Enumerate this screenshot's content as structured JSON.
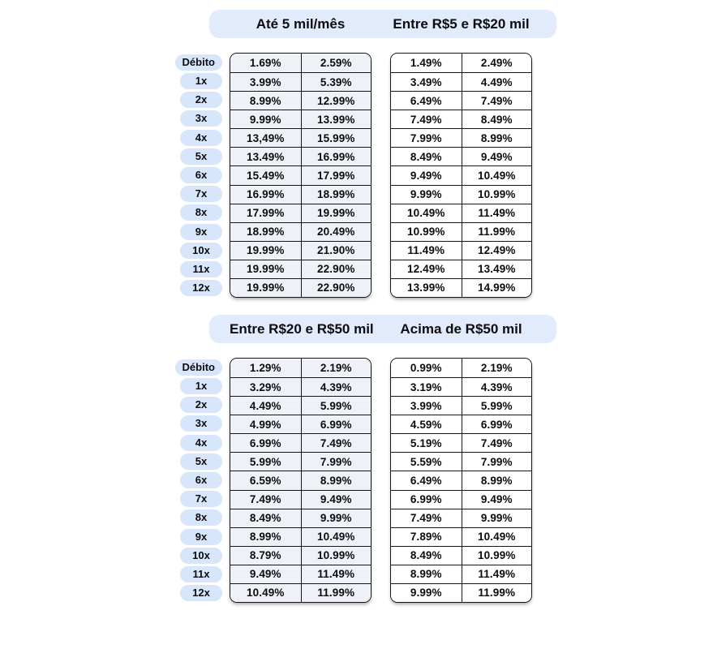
{
  "colors": {
    "page_bg": "#ffffff",
    "band_bg": "#e1ebfc",
    "pill_bg": "#d8e6fb",
    "tinted_cell_bg": "#eef1f6",
    "white_cell_bg": "#ffffff",
    "border": "#15151a",
    "text": "#0c0c10"
  },
  "row_labels": [
    "Débito",
    "1x",
    "2x",
    "3x",
    "4x",
    "5x",
    "6x",
    "7x",
    "8x",
    "9x",
    "10x",
    "11x",
    "12x"
  ],
  "tables": [
    {
      "title": "Até 5 mil/mês",
      "col1": [
        "1.69%",
        "3.99%",
        "8.99%",
        "9.99%",
        "13,49%",
        "13.49%",
        "15.49%",
        "16.99%",
        "17.99%",
        "18.99%",
        "19.99%",
        "19.99%",
        "19.99%"
      ],
      "col2": [
        "2.59%",
        "5.39%",
        "12.99%",
        "13.99%",
        "15.99%",
        "16.99%",
        "17.99%",
        "18.99%",
        "19.99%",
        "20.49%",
        "21.90%",
        "22.90%",
        "22.90%"
      ]
    },
    {
      "title": "Entre R$5 e R$20 mil",
      "col1": [
        "1.49%",
        "3.49%",
        "6.49%",
        "7.49%",
        "7.99%",
        "8.49%",
        "9.49%",
        "9.99%",
        "10.49%",
        "10.99%",
        "11.49%",
        "12.49%",
        "13.99%"
      ],
      "col2": [
        "2.49%",
        "4.49%",
        "7.49%",
        "8.49%",
        "8.99%",
        "9.49%",
        "10.49%",
        "10.99%",
        "11.49%",
        "11.99%",
        "12.49%",
        "13.49%",
        "14.99%"
      ]
    },
    {
      "title": "Entre R$20 e R$50 mil",
      "col1": [
        "1.29%",
        "3.29%",
        "4.49%",
        "4.99%",
        "6.99%",
        "5.99%",
        "6.59%",
        "7.49%",
        "8.49%",
        "8.99%",
        "8.79%",
        "9.49%",
        "10.49%"
      ],
      "col2": [
        "2.19%",
        "4.39%",
        "5.99%",
        "6.99%",
        "7.49%",
        "7.99%",
        "8.99%",
        "9.49%",
        "9.99%",
        "10.49%",
        "10.99%",
        "11.49%",
        "11.99%"
      ]
    },
    {
      "title": "Acima de R$50 mil",
      "col1": [
        "0.99%",
        "3.19%",
        "3.99%",
        "4.59%",
        "5.19%",
        "5.59%",
        "6.49%",
        "6.99%",
        "7.49%",
        "7.89%",
        "8.49%",
        "8.99%",
        "9.99%"
      ],
      "col2": [
        "2.19%",
        "4.39%",
        "5.99%",
        "6.99%",
        "7.49%",
        "7.99%",
        "8.99%",
        "9.49%",
        "9.99%",
        "10.49%",
        "10.99%",
        "11.49%",
        "11.99%"
      ]
    }
  ]
}
